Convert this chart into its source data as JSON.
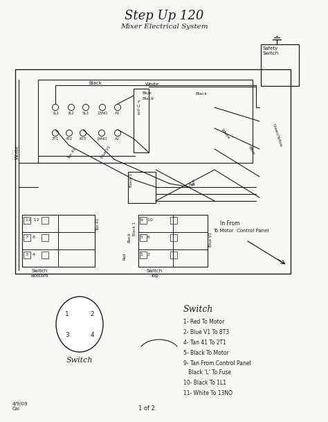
{
  "title": "Step Up 120",
  "subtitle": "Mixer Electrical System",
  "background_color": "#f8f8f5",
  "line_color": "#1a1a1a",
  "text_color": "#1a1a1a",
  "page_note": "1 of 2.",
  "date_note": "4/9/09\nCal",
  "switch_legend_title": "Switch",
  "switch_legend_items": [
    "1- Red To Motor",
    "2- Blue V1 To 8T3",
    "4- Tan 41 To 2T1",
    "5- Black To Motor",
    "9- Tan From Control Panel\n   Black 'L' To Fuse",
    "10- Black To 1L1",
    "11- White To 13NO"
  ],
  "switch_circle_label": "Switch",
  "figsize": [
    4.74,
    6.09
  ],
  "dpi": 100
}
